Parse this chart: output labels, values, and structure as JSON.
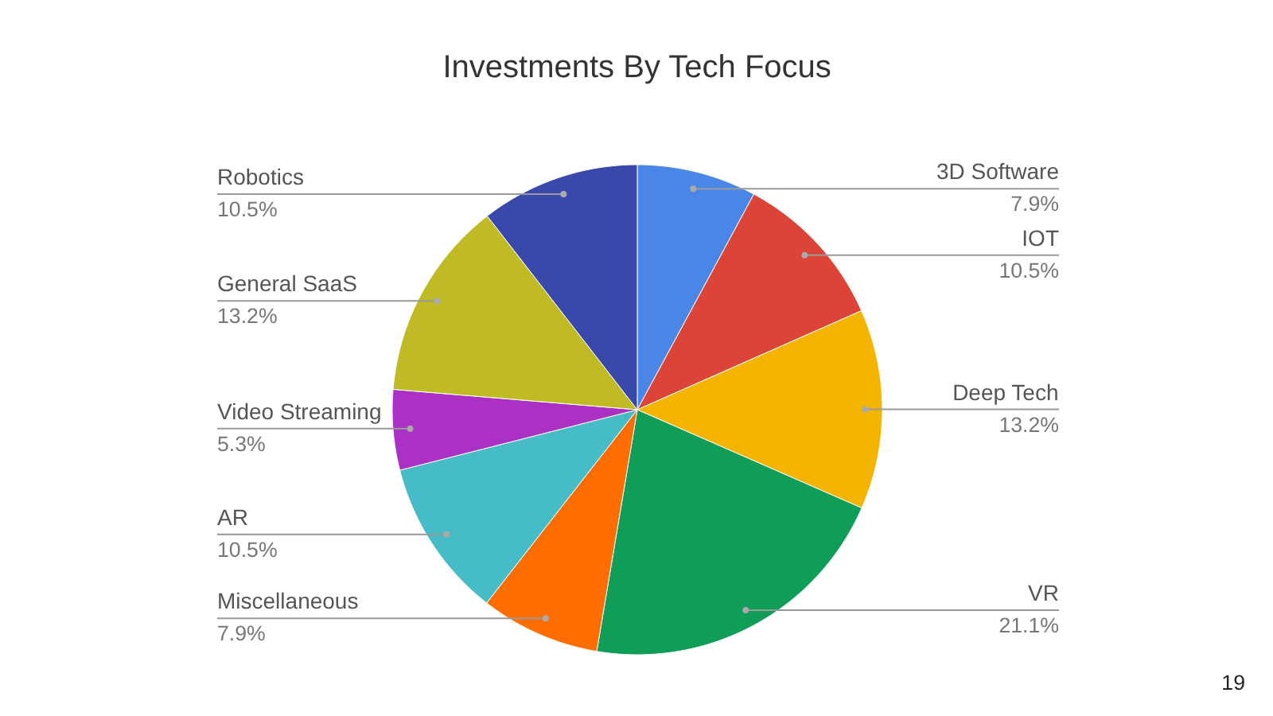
{
  "chart_data": {
    "type": "pie",
    "title": "Investments By Tech Focus",
    "categories": [
      "3D Software",
      "IOT",
      "Deep Tech",
      "VR",
      "Miscellaneous",
      "AR",
      "Video Streaming",
      "General SaaS",
      "Robotics"
    ],
    "values": [
      7.9,
      10.5,
      13.2,
      21.1,
      7.9,
      10.5,
      5.3,
      13.2,
      10.5
    ],
    "value_labels": [
      "7.9%",
      "10.5%",
      "13.2%",
      "21.1%",
      "7.9%",
      "10.5%",
      "5.3%",
      "13.2%",
      "10.5%"
    ],
    "colors": [
      "#4a86e8",
      "#db4437",
      "#f4b400",
      "#0f9d58",
      "#ff6d00",
      "#46bdc6",
      "#ab30c4",
      "#c0bb24",
      "#3949ab"
    ],
    "annotations": [
      "19"
    ]
  }
}
